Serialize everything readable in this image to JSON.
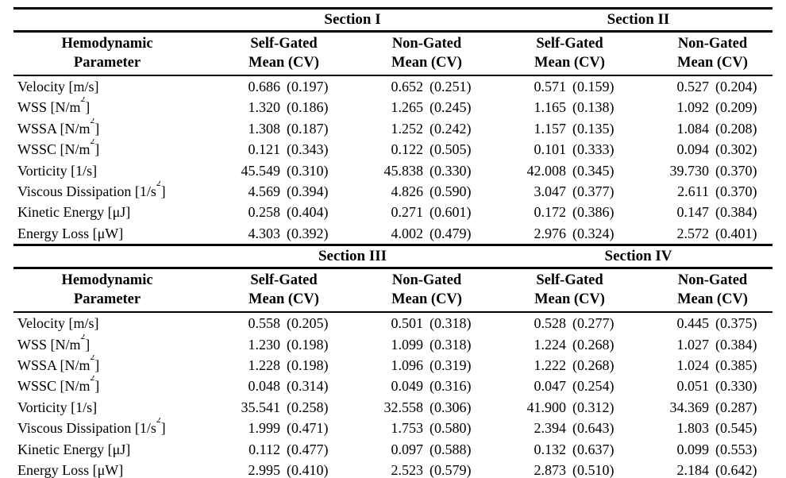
{
  "document": {
    "kind": "hemodynamic-parameters-table",
    "text_color": "#000000",
    "background_color": "#ffffff"
  },
  "tables": [
    {
      "section_left": "Section I",
      "section_right": "Section II",
      "param_header_line1": "Hemodynamic",
      "param_header_line2": "Parameter",
      "col_headers": [
        {
          "l1": "Self-Gated",
          "l2": "Mean (CV)"
        },
        {
          "l1": "Non-Gated",
          "l2": "Mean (CV)"
        },
        {
          "l1": "Self-Gated",
          "l2": "Mean (CV)"
        },
        {
          "l1": "Non-Gated",
          "l2": "Mean (CV)"
        }
      ],
      "rows": [
        {
          "param": {
            "base": "Velocity [m/s]",
            "sup": "",
            "close": ""
          },
          "cells": [
            [
              "0.686",
              "(0.197)"
            ],
            [
              "0.652",
              "(0.251)"
            ],
            [
              "0.571",
              "(0.159)"
            ],
            [
              "0.527",
              "(0.204)"
            ]
          ]
        },
        {
          "param": {
            "base": "WSS [N/m",
            "sup": "2",
            "close": "]"
          },
          "cells": [
            [
              "1.320",
              "(0.186)"
            ],
            [
              "1.265",
              "(0.245)"
            ],
            [
              "1.165",
              "(0.138)"
            ],
            [
              "1.092",
              "(0.209)"
            ]
          ]
        },
        {
          "param": {
            "base": "WSSA [N/m",
            "sup": "2",
            "close": "]"
          },
          "cells": [
            [
              "1.308",
              "(0.187)"
            ],
            [
              "1.252",
              "(0.242)"
            ],
            [
              "1.157",
              "(0.135)"
            ],
            [
              "1.084",
              "(0.208)"
            ]
          ]
        },
        {
          "param": {
            "base": "WSSC [N/m",
            "sup": "2",
            "close": "]"
          },
          "cells": [
            [
              "0.121",
              "(0.343)"
            ],
            [
              "0.122",
              "(0.505)"
            ],
            [
              "0.101",
              "(0.333)"
            ],
            [
              "0.094",
              "(0.302)"
            ]
          ]
        },
        {
          "param": {
            "base": "Vorticity [1/s]",
            "sup": "",
            "close": ""
          },
          "cells": [
            [
              "45.549",
              "(0.310)"
            ],
            [
              "45.838",
              "(0.330)"
            ],
            [
              "42.008",
              "(0.345)"
            ],
            [
              "39.730",
              "(0.370)"
            ]
          ]
        },
        {
          "param": {
            "base": "Viscous Dissipation [1/s",
            "sup": "2",
            "close": "]"
          },
          "cells": [
            [
              "4.569",
              "(0.394)"
            ],
            [
              "4.826",
              "(0.590)"
            ],
            [
              "3.047",
              "(0.377)"
            ],
            [
              "2.611",
              "(0.370)"
            ]
          ]
        },
        {
          "param": {
            "base": "Kinetic Energy [μJ]",
            "sup": "",
            "close": ""
          },
          "cells": [
            [
              "0.258",
              "(0.404)"
            ],
            [
              "0.271",
              "(0.601)"
            ],
            [
              "0.172",
              "(0.386)"
            ],
            [
              "0.147",
              "(0.384)"
            ]
          ]
        },
        {
          "param": {
            "base": "Energy Loss [μW]",
            "sup": "",
            "close": ""
          },
          "cells": [
            [
              "4.303",
              "(0.392)"
            ],
            [
              "4.002",
              "(0.479)"
            ],
            [
              "2.976",
              "(0.324)"
            ],
            [
              "2.572",
              "(0.401)"
            ]
          ]
        }
      ]
    },
    {
      "section_left": "Section III",
      "section_right": "Section IV",
      "param_header_line1": "Hemodynamic",
      "param_header_line2": "Parameter",
      "col_headers": [
        {
          "l1": "Self-Gated",
          "l2": "Mean (CV)"
        },
        {
          "l1": "Non-Gated",
          "l2": "Mean (CV)"
        },
        {
          "l1": "Self-Gated",
          "l2": "Mean (CV)"
        },
        {
          "l1": "Non-Gated",
          "l2": "Mean (CV)"
        }
      ],
      "rows": [
        {
          "param": {
            "base": "Velocity [m/s]",
            "sup": "",
            "close": ""
          },
          "cells": [
            [
              "0.558",
              "(0.205)"
            ],
            [
              "0.501",
              "(0.318)"
            ],
            [
              "0.528",
              "(0.277)"
            ],
            [
              "0.445",
              "(0.375)"
            ]
          ]
        },
        {
          "param": {
            "base": "WSS [N/m",
            "sup": "2",
            "close": "]"
          },
          "cells": [
            [
              "1.230",
              "(0.198)"
            ],
            [
              "1.099",
              "(0.318)"
            ],
            [
              "1.224",
              "(0.268)"
            ],
            [
              "1.027",
              "(0.384)"
            ]
          ]
        },
        {
          "param": {
            "base": "WSSA [N/m",
            "sup": "2",
            "close": "]"
          },
          "cells": [
            [
              "1.228",
              "(0.198)"
            ],
            [
              "1.096",
              "(0.319)"
            ],
            [
              "1.222",
              "(0.268)"
            ],
            [
              "1.024",
              "(0.385)"
            ]
          ]
        },
        {
          "param": {
            "base": "WSSC [N/m",
            "sup": "2",
            "close": "]"
          },
          "cells": [
            [
              "0.048",
              "(0.314)"
            ],
            [
              "0.049",
              "(0.316)"
            ],
            [
              "0.047",
              "(0.254)"
            ],
            [
              "0.051",
              "(0.330)"
            ]
          ]
        },
        {
          "param": {
            "base": "Vorticity [1/s]",
            "sup": "",
            "close": ""
          },
          "cells": [
            [
              "35.541",
              "(0.258)"
            ],
            [
              "32.558",
              "(0.306)"
            ],
            [
              "41.900",
              "(0.312)"
            ],
            [
              "34.369",
              "(0.287)"
            ]
          ]
        },
        {
          "param": {
            "base": "Viscous Dissipation [1/s",
            "sup": "2",
            "close": "]"
          },
          "cells": [
            [
              "1.999",
              "(0.471)"
            ],
            [
              "1.753",
              "(0.580)"
            ],
            [
              "2.394",
              "(0.643)"
            ],
            [
              "1.803",
              "(0.545)"
            ]
          ]
        },
        {
          "param": {
            "base": "Kinetic Energy [μJ]",
            "sup": "",
            "close": ""
          },
          "cells": [
            [
              "0.112",
              "(0.477)"
            ],
            [
              "0.097",
              "(0.588)"
            ],
            [
              "0.132",
              "(0.637)"
            ],
            [
              "0.099",
              "(0.553)"
            ]
          ]
        },
        {
          "param": {
            "base": "Energy Loss [μW]",
            "sup": "",
            "close": ""
          },
          "cells": [
            [
              "2.995",
              "(0.410)"
            ],
            [
              "2.523",
              "(0.579)"
            ],
            [
              "2.873",
              "(0.510)"
            ],
            [
              "2.184",
              "(0.642)"
            ]
          ]
        }
      ]
    }
  ]
}
